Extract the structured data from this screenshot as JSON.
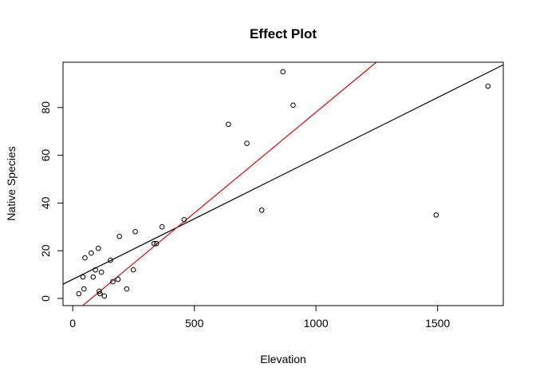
{
  "chart_data": {
    "type": "scatter",
    "title": "Effect Plot",
    "xlabel": "Elevation",
    "ylabel": "Native Species",
    "xlim": [
      -40,
      1770
    ],
    "ylim": [
      -3,
      99
    ],
    "x_ticks": [
      0,
      500,
      1000,
      1500
    ],
    "y_ticks": [
      0,
      20,
      40,
      60,
      80
    ],
    "grid": false,
    "points": [
      {
        "x": 25,
        "y": 2
      },
      {
        "x": 42,
        "y": 9
      },
      {
        "x": 46,
        "y": 4
      },
      {
        "x": 50,
        "y": 17
      },
      {
        "x": 76,
        "y": 19
      },
      {
        "x": 84,
        "y": 9
      },
      {
        "x": 93,
        "y": 12
      },
      {
        "x": 105,
        "y": 21
      },
      {
        "x": 109,
        "y": 3
      },
      {
        "x": 112,
        "y": 2
      },
      {
        "x": 118,
        "y": 11
      },
      {
        "x": 130,
        "y": 1
      },
      {
        "x": 155,
        "y": 16
      },
      {
        "x": 165,
        "y": 7
      },
      {
        "x": 186,
        "y": 8
      },
      {
        "x": 192,
        "y": 26
      },
      {
        "x": 222,
        "y": 4
      },
      {
        "x": 249,
        "y": 12
      },
      {
        "x": 257,
        "y": 28
      },
      {
        "x": 334,
        "y": 23
      },
      {
        "x": 344,
        "y": 23
      },
      {
        "x": 367,
        "y": 30
      },
      {
        "x": 458,
        "y": 33
      },
      {
        "x": 640,
        "y": 73
      },
      {
        "x": 716,
        "y": 65
      },
      {
        "x": 777,
        "y": 37
      },
      {
        "x": 864,
        "y": 95
      },
      {
        "x": 906,
        "y": 81
      },
      {
        "x": 1494,
        "y": 35
      },
      {
        "x": 1707,
        "y": 89
      }
    ],
    "lines": [
      {
        "color": "#000000",
        "intercept": 8.0,
        "slope": 0.0508
      },
      {
        "color": "#dd0000",
        "intercept": -6.45,
        "slope": 0.0845
      }
    ]
  }
}
